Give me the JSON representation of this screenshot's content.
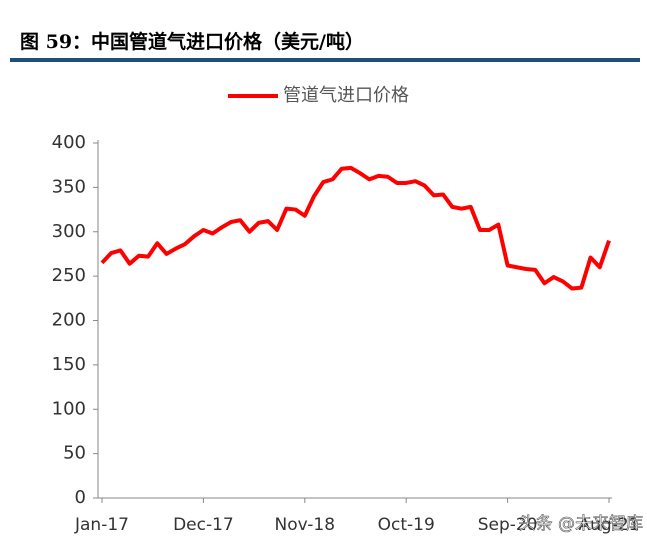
{
  "chart_data": {
    "type": "line",
    "title": "图 59：中国管道气进口价格（美元/吨）",
    "categories": [
      "Jan-17",
      null,
      null,
      null,
      null,
      null,
      null,
      null,
      null,
      null,
      null,
      "Dec-17",
      null,
      null,
      null,
      null,
      null,
      null,
      null,
      null,
      null,
      null,
      "Nov-18",
      null,
      null,
      null,
      null,
      null,
      null,
      null,
      null,
      null,
      null,
      "Oct-19",
      null,
      null,
      null,
      null,
      null,
      null,
      null,
      null,
      null,
      null,
      "Sep-20",
      null,
      null,
      null,
      null,
      null,
      null,
      null,
      null,
      null,
      null,
      "Aug-21"
    ],
    "series": [
      {
        "name": "管道气进口价格",
        "color": "#ff0000",
        "values": [
          265,
          276,
          279,
          264,
          273,
          272,
          287,
          275,
          281,
          286,
          295,
          302,
          298,
          305,
          311,
          313,
          300,
          310,
          312,
          302,
          326,
          325,
          318,
          340,
          356,
          359,
          371,
          372,
          366,
          359,
          363,
          362,
          355,
          355,
          357,
          352,
          341,
          342,
          328,
          326,
          328,
          302,
          302,
          308,
          262,
          260,
          258,
          257,
          242,
          249,
          244,
          236,
          237,
          271,
          260,
          290
        ]
      }
    ],
    "ylim": [
      0,
      400
    ],
    "yticks": [
      0,
      50,
      100,
      150,
      200,
      250,
      300,
      350,
      400
    ],
    "legend": "top",
    "grid": false,
    "watermark": "头条 @未来智库"
  }
}
